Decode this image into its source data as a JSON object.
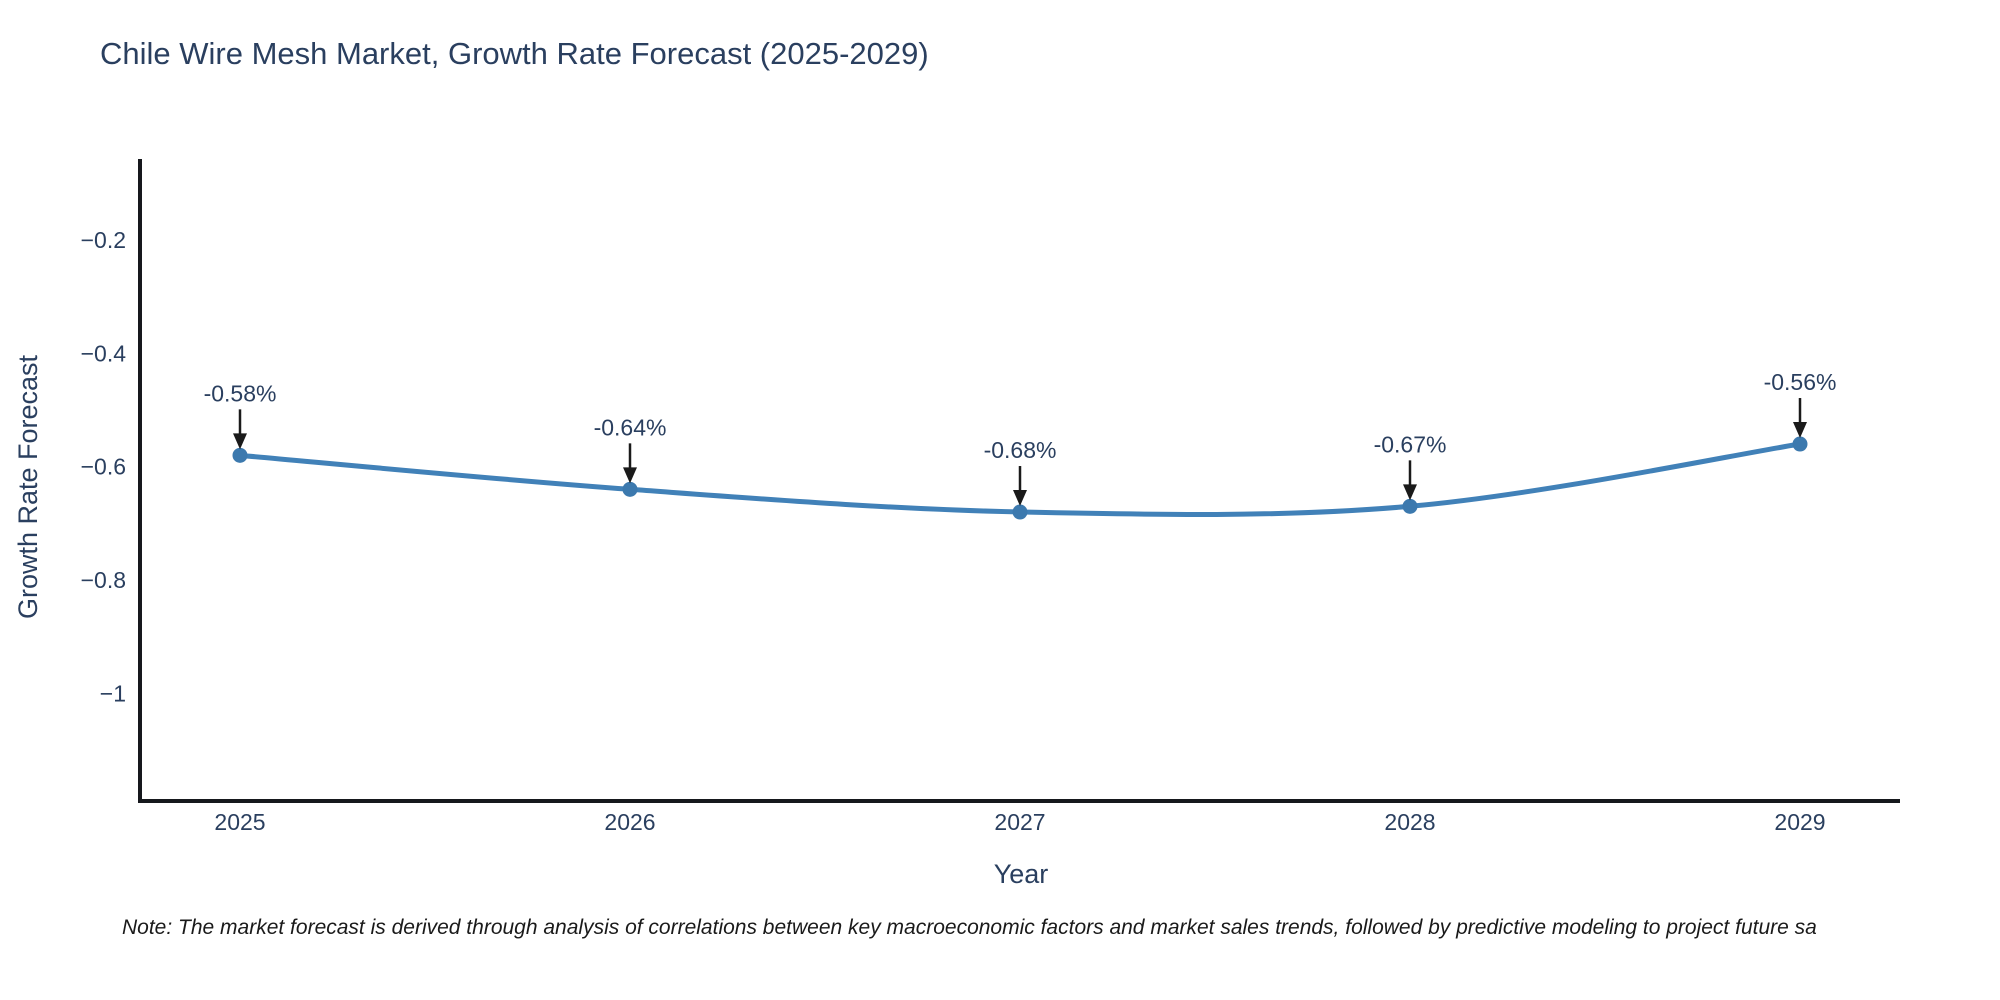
{
  "title": "Chile Wire Mesh Market, Growth Rate Forecast (2025-2029)",
  "note": "Note: The market forecast is derived through analysis of correlations between key macroeconomic factors and market sales trends, followed by predictive modeling to project future sa",
  "chart_data": {
    "type": "line",
    "title": "Chile Wire Mesh Market, Growth Rate Forecast (2025-2029)",
    "xlabel": "Year",
    "ylabel": "Growth Rate Forecast",
    "x": [
      2025,
      2026,
      2027,
      2028,
      2029
    ],
    "series": [
      {
        "name": "Growth Rate Forecast",
        "values": [
          -0.58,
          -0.64,
          -0.68,
          -0.67,
          -0.56
        ]
      }
    ],
    "point_labels": [
      "-0.58%",
      "-0.64%",
      "-0.68%",
      "-0.67%",
      "-0.56%"
    ],
    "ytick_values": [
      -0.2,
      -0.4,
      -0.6,
      -0.8,
      -1
    ],
    "ytick_labels": [
      "−0.2",
      "−0.4",
      "−0.6",
      "−0.8",
      "−1"
    ],
    "ylim": [
      -1.19,
      -0.057
    ],
    "grid": false,
    "legend_position": "none",
    "line_shape": "spline",
    "annotation_arrows": "down",
    "colors": {
      "line": "#4181b8",
      "marker": "#3c79ae",
      "axis": "#16181d",
      "arrow": "#1a1a1a",
      "text": "#2a3f5f",
      "background": "#ffffff"
    }
  }
}
